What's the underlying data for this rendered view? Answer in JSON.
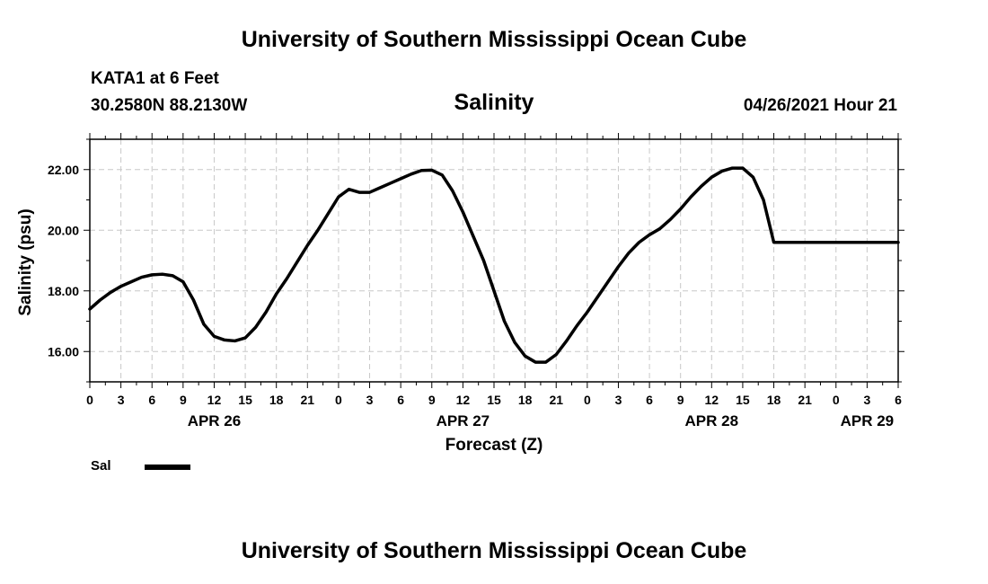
{
  "header": {
    "title": "University of Southern Mississippi Ocean Cube",
    "station": "KATA1 at 6 Feet",
    "coordinates": "30.2580N  88.2130W",
    "timestamp": "04/26/2021 Hour 21"
  },
  "footer": {
    "title": "University of Southern Mississippi Ocean Cube"
  },
  "chart_data": {
    "type": "line",
    "title": "Salinity",
    "xlabel": "Forecast (Z)",
    "ylabel": "Salinity (psu)",
    "ylim": [
      15.0,
      23.0
    ],
    "y_ticks": [
      "16.00",
      "18.00",
      "20.00",
      "22.00"
    ],
    "y_tick_values": [
      16,
      18,
      20,
      22
    ],
    "x_range_hours": [
      0,
      78
    ],
    "x_tick_labels": [
      "0",
      "3",
      "6",
      "9",
      "12",
      "15",
      "18",
      "21",
      "0",
      "3",
      "6",
      "9",
      "12",
      "15",
      "18",
      "21",
      "0",
      "3",
      "6",
      "9",
      "12",
      "15",
      "18",
      "21",
      "0",
      "3",
      "6"
    ],
    "date_labels": [
      {
        "label": "APR 26",
        "hour": 12
      },
      {
        "label": "APR 27",
        "hour": 36
      },
      {
        "label": "APR 28",
        "hour": 60
      },
      {
        "label": "APR 29",
        "hour": 75
      }
    ],
    "grid": true,
    "legend_position": "bottom-left",
    "series": [
      {
        "name": "Sal",
        "color": "#000000",
        "x": [
          0,
          1,
          2,
          3,
          4,
          5,
          6,
          7,
          8,
          9,
          10,
          11,
          12,
          13,
          14,
          15,
          16,
          17,
          18,
          19,
          20,
          21,
          22,
          23,
          24,
          25,
          26,
          27,
          28,
          29,
          30,
          31,
          32,
          33,
          34,
          35,
          36,
          37,
          38,
          39,
          40,
          41,
          42,
          43,
          44,
          45,
          46,
          47,
          48,
          49,
          50,
          51,
          52,
          53,
          54,
          55,
          56,
          57,
          58,
          59,
          60,
          61,
          62,
          63,
          64,
          65,
          66,
          67,
          68,
          69,
          70,
          71,
          72,
          73,
          74,
          75,
          76,
          77,
          78
        ],
        "values": [
          17.4,
          17.7,
          17.95,
          18.15,
          18.3,
          18.45,
          18.53,
          18.55,
          18.5,
          18.3,
          17.7,
          16.9,
          16.5,
          16.38,
          16.35,
          16.45,
          16.8,
          17.3,
          17.9,
          18.4,
          18.95,
          19.5,
          20.0,
          20.55,
          21.1,
          21.35,
          21.25,
          21.25,
          21.4,
          21.55,
          21.7,
          21.85,
          21.97,
          21.98,
          21.82,
          21.3,
          20.6,
          19.8,
          19.0,
          18.0,
          17.0,
          16.3,
          15.85,
          15.65,
          15.65,
          15.9,
          16.35,
          16.85,
          17.3,
          17.8,
          18.3,
          18.8,
          19.25,
          19.6,
          19.85,
          20.05,
          20.35,
          20.7,
          21.1,
          21.45,
          21.75,
          21.95,
          22.05,
          22.05,
          21.75,
          21.0,
          19.6,
          19.6,
          19.6,
          19.6,
          19.6,
          19.6,
          19.6,
          19.6,
          19.6,
          19.6,
          19.6,
          19.6,
          19.6
        ]
      }
    ]
  },
  "legend": {
    "label": "Sal"
  }
}
